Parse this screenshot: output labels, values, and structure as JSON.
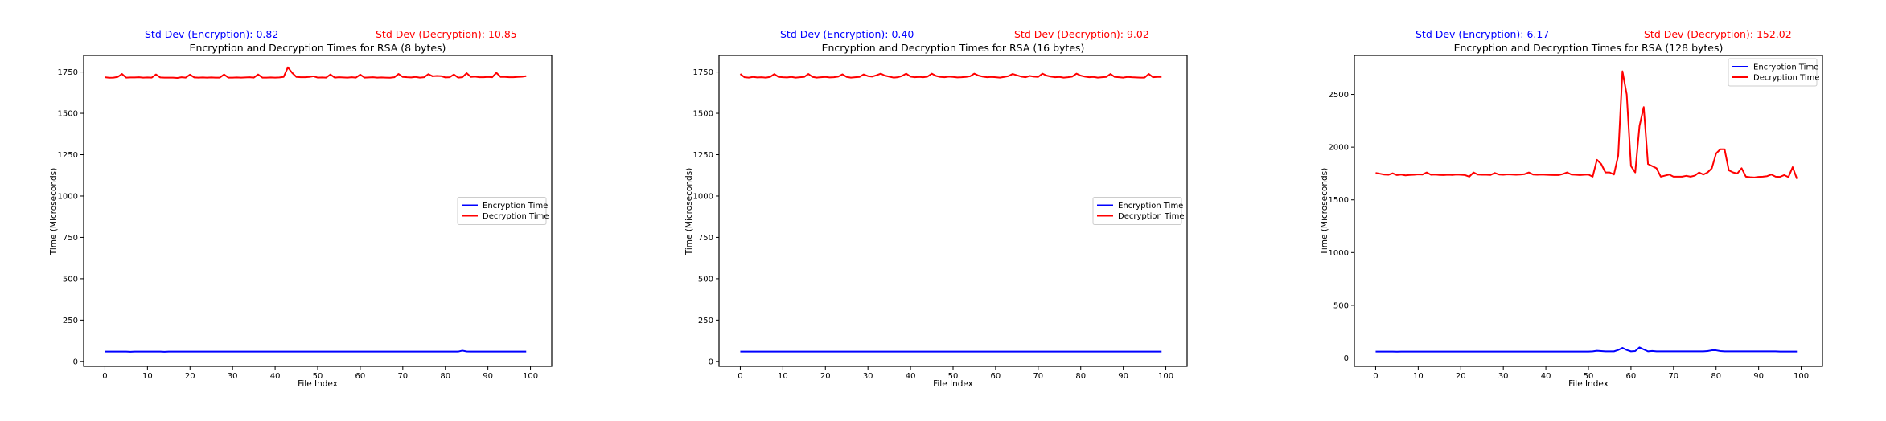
{
  "colors": {
    "encryption": "#0000ff",
    "decryption": "#ff0000"
  },
  "chart_data": [
    {
      "type": "line",
      "title": "Encryption and Decryption Times for RSA (8 bytes)",
      "xlabel": "File Index",
      "ylabel": "Time (Microseconds)",
      "std_enc_label": "Std Dev (Encryption): 0.82",
      "std_dec_label": "Std Dev (Decryption): 10.85",
      "xlim": [
        -5,
        105
      ],
      "ylim": [
        -30,
        1850
      ],
      "xticks": [
        0,
        10,
        20,
        30,
        40,
        50,
        60,
        70,
        80,
        90,
        100
      ],
      "yticks": [
        0,
        250,
        500,
        750,
        1000,
        1250,
        1500,
        1750
      ],
      "legend": "center-right",
      "x_range": [
        0,
        99
      ],
      "series": [
        {
          "name": "Encryption Time",
          "color": "#0000ff",
          "values": [
            59,
            59,
            59,
            59,
            59,
            59,
            58,
            59,
            59,
            59,
            59,
            59,
            59,
            59,
            58,
            59,
            59,
            59,
            59,
            59,
            59,
            59,
            59,
            59,
            59,
            59,
            59,
            59,
            59,
            59,
            59,
            59,
            59,
            59,
            59,
            59,
            59,
            59,
            59,
            59,
            59,
            59,
            59,
            59,
            59,
            59,
            59,
            59,
            59,
            59,
            59,
            59,
            59,
            59,
            59,
            59,
            59,
            59,
            59,
            59,
            59,
            59,
            59,
            59,
            59,
            59,
            59,
            59,
            59,
            59,
            59,
            59,
            59,
            59,
            59,
            59,
            59,
            59,
            59,
            59,
            59,
            59,
            59,
            59,
            65,
            60,
            59,
            59,
            59,
            59,
            59,
            59,
            59,
            59,
            59,
            59,
            59,
            59,
            59,
            59
          ]
        },
        {
          "name": "Decryption Time",
          "color": "#ff0000",
          "values": [
            1718,
            1715,
            1716,
            1720,
            1738,
            1716,
            1717,
            1717,
            1718,
            1716,
            1717,
            1716,
            1735,
            1717,
            1716,
            1716,
            1716,
            1714,
            1718,
            1716,
            1734,
            1717,
            1716,
            1717,
            1716,
            1717,
            1716,
            1716,
            1735,
            1716,
            1716,
            1717,
            1716,
            1717,
            1718,
            1716,
            1735,
            1716,
            1716,
            1717,
            1716,
            1717,
            1720,
            1778,
            1745,
            1720,
            1718,
            1718,
            1720,
            1724,
            1716,
            1717,
            1716,
            1735,
            1716,
            1718,
            1717,
            1716,
            1718,
            1716,
            1734,
            1716,
            1717,
            1718,
            1716,
            1717,
            1716,
            1715,
            1718,
            1738,
            1720,
            1718,
            1717,
            1720,
            1716,
            1718,
            1737,
            1724,
            1726,
            1725,
            1717,
            1718,
            1735,
            1716,
            1718,
            1743,
            1720,
            1722,
            1718,
            1718,
            1720,
            1718,
            1745,
            1720,
            1720,
            1718,
            1718,
            1720,
            1721,
            1725
          ]
        }
      ]
    },
    {
      "type": "line",
      "title": "Encryption and Decryption Times for RSA (16 bytes)",
      "xlabel": "File Index",
      "ylabel": "Time (Microseconds)",
      "std_enc_label": "Std Dev (Encryption): 0.40",
      "std_dec_label": "Std Dev (Decryption): 9.02",
      "xlim": [
        -5,
        105
      ],
      "ylim": [
        -30,
        1850
      ],
      "xticks": [
        0,
        10,
        20,
        30,
        40,
        50,
        60,
        70,
        80,
        90,
        100
      ],
      "yticks": [
        0,
        250,
        500,
        750,
        1000,
        1250,
        1500,
        1750
      ],
      "legend": "center-right",
      "x_range": [
        0,
        99
      ],
      "series": [
        {
          "name": "Encryption Time",
          "color": "#0000ff",
          "values": [
            59,
            59,
            59,
            59,
            59,
            59,
            59,
            59,
            59,
            59,
            59,
            59,
            59,
            59,
            59,
            59,
            59,
            59,
            59,
            59,
            59,
            59,
            59,
            59,
            59,
            59,
            59,
            59,
            59,
            59,
            59,
            59,
            59,
            59,
            59,
            59,
            59,
            59,
            59,
            59,
            59,
            59,
            59,
            59,
            59,
            59,
            59,
            59,
            59,
            59,
            59,
            59,
            59,
            59,
            59,
            59,
            59,
            59,
            59,
            59,
            59,
            59,
            59,
            59,
            59,
            59,
            59,
            59,
            59,
            59,
            59,
            59,
            59,
            59,
            59,
            59,
            59,
            59,
            59,
            59,
            59,
            59,
            59,
            59,
            59,
            59,
            59,
            59,
            59,
            59,
            59,
            59,
            59,
            59,
            59,
            59,
            59,
            59,
            59,
            59
          ]
        },
        {
          "name": "Decryption Time",
          "color": "#ff0000",
          "values": [
            1738,
            1718,
            1716,
            1720,
            1717,
            1718,
            1716,
            1720,
            1737,
            1720,
            1718,
            1717,
            1720,
            1716,
            1718,
            1720,
            1738,
            1720,
            1716,
            1718,
            1720,
            1717,
            1718,
            1722,
            1736,
            1720,
            1716,
            1718,
            1720,
            1735,
            1725,
            1722,
            1730,
            1740,
            1728,
            1722,
            1716,
            1718,
            1726,
            1740,
            1722,
            1718,
            1720,
            1718,
            1722,
            1740,
            1726,
            1720,
            1718,
            1722,
            1720,
            1717,
            1718,
            1720,
            1724,
            1740,
            1728,
            1722,
            1718,
            1720,
            1718,
            1716,
            1720,
            1725,
            1738,
            1730,
            1722,
            1718,
            1726,
            1722,
            1720,
            1740,
            1728,
            1722,
            1718,
            1720,
            1716,
            1718,
            1722,
            1740,
            1728,
            1722,
            1718,
            1720,
            1716,
            1718,
            1720,
            1738,
            1720,
            1718,
            1716,
            1720,
            1718,
            1717,
            1716,
            1716,
            1738,
            1718,
            1720,
            1720
          ]
        }
      ]
    },
    {
      "type": "line",
      "title": "Encryption and Decryption Times for RSA (128 bytes)",
      "xlabel": "File Index",
      "ylabel": "Time (Microseconds)",
      "std_enc_label": "Std Dev (Encryption): 6.17",
      "std_dec_label": "Std Dev (Decryption): 152.02",
      "xlim": [
        -5,
        105
      ],
      "ylim": [
        -80,
        2870
      ],
      "xticks": [
        0,
        10,
        20,
        30,
        40,
        50,
        60,
        70,
        80,
        90,
        100
      ],
      "yticks": [
        0,
        500,
        1000,
        1500,
        2000,
        2500
      ],
      "legend": "upper-right",
      "x_range": [
        0,
        99
      ],
      "series": [
        {
          "name": "Encryption Time",
          "color": "#0000ff",
          "values": [
            60,
            60,
            60,
            60,
            60,
            59,
            60,
            60,
            60,
            60,
            60,
            60,
            60,
            60,
            60,
            60,
            60,
            60,
            60,
            60,
            60,
            60,
            60,
            60,
            60,
            60,
            60,
            60,
            60,
            60,
            60,
            60,
            60,
            60,
            60,
            60,
            60,
            60,
            60,
            60,
            60,
            60,
            60,
            60,
            60,
            60,
            60,
            60,
            60,
            60,
            60,
            62,
            68,
            65,
            62,
            62,
            62,
            75,
            95,
            75,
            62,
            65,
            100,
            80,
            62,
            66,
            62,
            62,
            62,
            62,
            62,
            62,
            62,
            62,
            62,
            62,
            62,
            62,
            65,
            72,
            72,
            65,
            62,
            62,
            62,
            62,
            62,
            62,
            62,
            62,
            62,
            62,
            62,
            62,
            62,
            60,
            60,
            60,
            60,
            60
          ]
        },
        {
          "name": "Decryption Time",
          "color": "#ff0000",
          "values": [
            1755,
            1748,
            1740,
            1738,
            1752,
            1735,
            1740,
            1732,
            1736,
            1738,
            1742,
            1740,
            1760,
            1738,
            1740,
            1736,
            1735,
            1738,
            1736,
            1740,
            1738,
            1735,
            1720,
            1760,
            1740,
            1738,
            1738,
            1736,
            1755,
            1740,
            1738,
            1742,
            1740,
            1738,
            1740,
            1744,
            1760,
            1740,
            1738,
            1740,
            1738,
            1736,
            1735,
            1735,
            1745,
            1760,
            1740,
            1738,
            1735,
            1738,
            1740,
            1720,
            1880,
            1840,
            1760,
            1760,
            1740,
            1920,
            2720,
            2500,
            1820,
            1760,
            2200,
            2380,
            1840,
            1820,
            1800,
            1720,
            1730,
            1740,
            1720,
            1720,
            1720,
            1728,
            1720,
            1730,
            1760,
            1740,
            1760,
            1800,
            1940,
            1980,
            1980,
            1780,
            1760,
            1750,
            1800,
            1720,
            1715,
            1712,
            1718,
            1720,
            1725,
            1740,
            1720,
            1718,
            1735,
            1716,
            1810,
            1700
          ]
        }
      ]
    }
  ]
}
